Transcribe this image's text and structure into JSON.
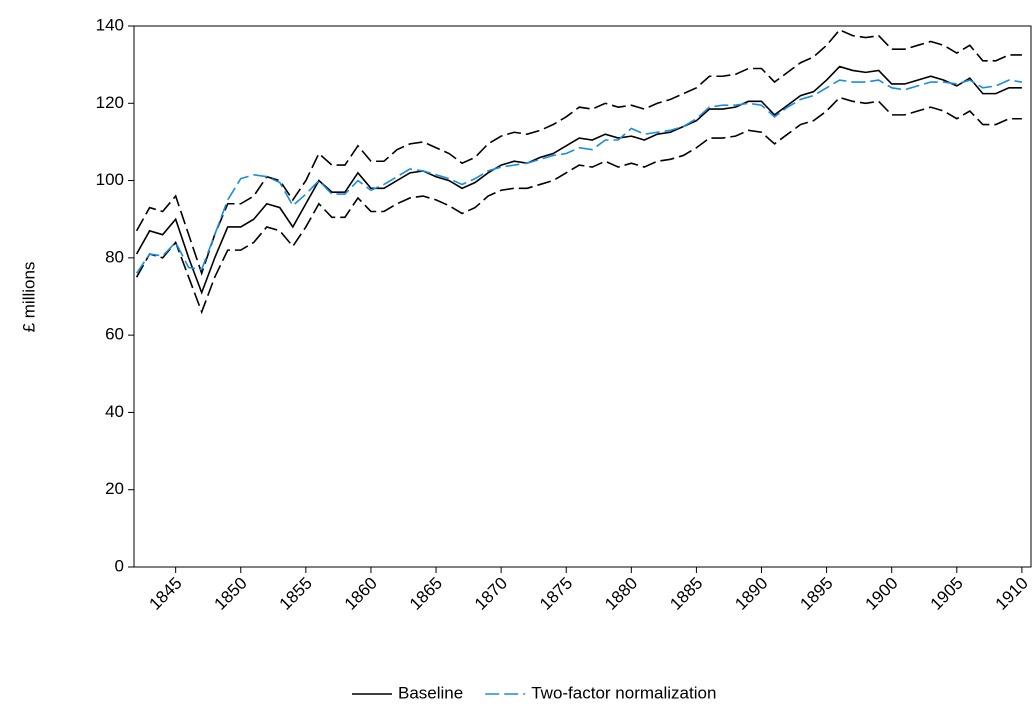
{
  "chart_data": {
    "type": "line",
    "y_label": "£ millions",
    "x": [
      1842,
      1843,
      1844,
      1845,
      1846,
      1847,
      1848,
      1849,
      1850,
      1851,
      1852,
      1853,
      1854,
      1855,
      1856,
      1857,
      1858,
      1859,
      1860,
      1861,
      1862,
      1863,
      1864,
      1865,
      1866,
      1867,
      1868,
      1869,
      1870,
      1871,
      1872,
      1873,
      1874,
      1875,
      1876,
      1877,
      1878,
      1879,
      1880,
      1881,
      1882,
      1883,
      1884,
      1885,
      1886,
      1887,
      1888,
      1889,
      1890,
      1891,
      1892,
      1893,
      1894,
      1895,
      1896,
      1897,
      1898,
      1899,
      1900,
      1901,
      1902,
      1903,
      1904,
      1905,
      1906,
      1907,
      1908,
      1909,
      1910
    ],
    "series": [
      {
        "name": "Baseline",
        "color": "#000000",
        "dash": "solid",
        "values": [
          81,
          87,
          86,
          90,
          80,
          71,
          80,
          88,
          88,
          90,
          94,
          93,
          88,
          94,
          100,
          97,
          97,
          102,
          98,
          98,
          100,
          102,
          102.5,
          101,
          100,
          98,
          99.5,
          102,
          104,
          105,
          104.5,
          106,
          107,
          109,
          111,
          110.5,
          112,
          111,
          111.5,
          110.5,
          112,
          112.5,
          114,
          115.5,
          118.5,
          118.5,
          119,
          120.5,
          120.5,
          117,
          119.5,
          122,
          123,
          126,
          129.5,
          128.5,
          128,
          128.5,
          125,
          125,
          126,
          127,
          126,
          124.5,
          126.5,
          122.5,
          122.5,
          124,
          124
        ]
      },
      {
        "color": "#000000",
        "dash": "long",
        "values": [
          87,
          93,
          92,
          96,
          86,
          76,
          86,
          94,
          94,
          96,
          101,
          100,
          95,
          100,
          107,
          104,
          104,
          109,
          105,
          105,
          108,
          109.5,
          110,
          108.5,
          107,
          104.5,
          106,
          109.5,
          111.5,
          112.5,
          112,
          113,
          114.5,
          116.5,
          119,
          118.5,
          120,
          119,
          119.5,
          118.5,
          120,
          121,
          122.5,
          124,
          127,
          127,
          127.5,
          129,
          129,
          125.5,
          128,
          130.5,
          132,
          135,
          139,
          137.5,
          137,
          137.5,
          134,
          134,
          135,
          136,
          135,
          133,
          135,
          131,
          131,
          132.5,
          132.5
        ]
      },
      {
        "color": "#000000",
        "dash": "long",
        "values": [
          75,
          81,
          80,
          84,
          75,
          66,
          75,
          82,
          82,
          84,
          88,
          87,
          83,
          88,
          94,
          90.5,
          90.5,
          95.5,
          92,
          92,
          94,
          95.5,
          96,
          95,
          93.5,
          91.5,
          93,
          96,
          97.5,
          98,
          98,
          99,
          100,
          102,
          104,
          103.5,
          105,
          103.5,
          104.5,
          103.5,
          105,
          105.5,
          106.5,
          108.5,
          111,
          111,
          111.5,
          113,
          112.5,
          109.5,
          112,
          114.5,
          115.5,
          118,
          121.5,
          120.5,
          120,
          120.5,
          117,
          117,
          118,
          119,
          118,
          116,
          118,
          114.5,
          114.5,
          116,
          116
        ]
      },
      {
        "name": "Two-factor normalization",
        "color": "#1a8ce0",
        "dash": "long",
        "values": [
          76,
          81,
          80.5,
          84,
          77.5,
          77,
          86,
          95,
          100.5,
          101.5,
          101,
          99.5,
          93.5,
          96.5,
          100,
          96.5,
          96.5,
          100,
          97.5,
          99,
          101,
          103,
          102.5,
          101.5,
          100.5,
          99,
          100.5,
          102.5,
          103.5,
          104,
          104.5,
          105.5,
          106.5,
          107,
          108.5,
          108,
          110.5,
          110.5,
          113.5,
          112,
          112.5,
          113,
          114,
          116,
          119,
          119.5,
          119.5,
          120,
          119.5,
          116.5,
          119,
          121,
          122,
          124,
          126,
          125.5,
          125.5,
          126,
          124,
          123.5,
          124.5,
          125.5,
          125.5,
          125,
          126,
          124,
          124.5,
          126,
          125.5
        ]
      }
    ],
    "xlim": [
      1841.8,
      1910.7
    ],
    "xticks": [
      1845,
      1850,
      1855,
      1860,
      1865,
      1870,
      1875,
      1880,
      1885,
      1890,
      1895,
      1900,
      1905,
      1910
    ],
    "ylim": [
      0,
      140
    ],
    "yticks": [
      0,
      20,
      40,
      60,
      80,
      100,
      120,
      140
    ],
    "grid": false,
    "legend": "bottom"
  }
}
